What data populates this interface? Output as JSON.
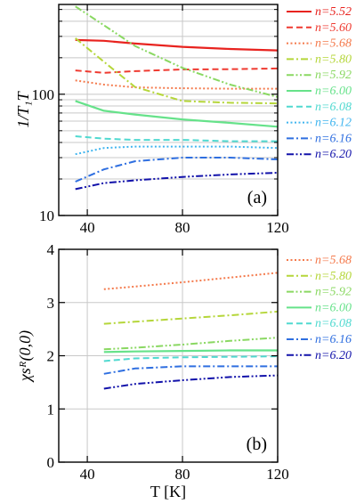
{
  "chart_data": [
    {
      "type": "line",
      "panel_label": "(a)",
      "ylabel": "1/T₁T",
      "xlabel": "",
      "xlim": [
        28,
        120
      ],
      "ylim": [
        10,
        550
      ],
      "yscale": "log",
      "xticks": [
        40,
        80,
        120
      ],
      "xtick_labels": [
        "40",
        "80",
        "120"
      ],
      "yticks": [
        10,
        100
      ],
      "ytick_labels": [
        "10",
        "100"
      ],
      "grid": true,
      "legend_placement": "right-outside",
      "series": [
        {
          "name": "n=5.52",
          "color": "#e8231f",
          "dash": "solid",
          "x": [
            35,
            47,
            60,
            80,
            100,
            120
          ],
          "y": [
            280,
            276,
            262,
            246,
            236,
            230
          ]
        },
        {
          "name": "n=5.60",
          "color": "#ef3a30",
          "dash": "dashed",
          "x": [
            35,
            47,
            60,
            80,
            100,
            120
          ],
          "y": [
            157,
            150,
            155,
            160,
            161,
            163
          ]
        },
        {
          "name": "n=5.68",
          "color": "#f47a4c",
          "dash": "dotted",
          "x": [
            35,
            47,
            60,
            80,
            100,
            120
          ],
          "y": [
            130,
            120,
            114,
            112,
            111,
            111
          ]
        },
        {
          "name": "n=5.80",
          "color": "#b5d63a",
          "dash": "dashdot",
          "x": [
            35,
            47,
            60,
            80,
            100,
            120
          ],
          "y": [
            290,
            185,
            115,
            88,
            85,
            84
          ]
        },
        {
          "name": "n=5.92",
          "color": "#8ad862",
          "dash": "dashdotdot",
          "x": [
            35,
            47,
            60,
            80,
            100,
            120
          ],
          "y": [
            530,
            370,
            250,
            165,
            120,
            95
          ]
        },
        {
          "name": "n=6.00",
          "color": "#66e28a",
          "dash": "solid",
          "x": [
            35,
            47,
            60,
            80,
            100,
            120
          ],
          "y": [
            88,
            73,
            68,
            62,
            58,
            54
          ]
        },
        {
          "name": "n=6.08",
          "color": "#50d9d0",
          "dash": "dashed",
          "x": [
            35,
            47,
            60,
            80,
            100,
            120
          ],
          "y": [
            45,
            43,
            42,
            42,
            41,
            41
          ]
        },
        {
          "name": "n=6.12",
          "color": "#40b5ef",
          "dash": "dotted",
          "x": [
            35,
            47,
            60,
            80,
            100,
            120
          ],
          "y": [
            32,
            36,
            37,
            37,
            37,
            36
          ]
        },
        {
          "name": "n=6.16",
          "color": "#2f6fe0",
          "dash": "dashdot",
          "x": [
            35,
            47,
            60,
            80,
            100,
            120
          ],
          "y": [
            19,
            24,
            28,
            30,
            30,
            29
          ]
        },
        {
          "name": "n=6.20",
          "color": "#1212aa",
          "dash": "dashdotdot",
          "x": [
            35,
            47,
            60,
            80,
            100,
            120
          ],
          "y": [
            16.5,
            18.5,
            19.5,
            20.8,
            21.8,
            22.5
          ]
        }
      ]
    },
    {
      "type": "line",
      "panel_label": "(b)",
      "ylabel": "χsᴿ(0,0)",
      "xlabel": "T [K]",
      "xlim": [
        28,
        120
      ],
      "ylim": [
        0,
        4
      ],
      "xticks": [
        40,
        80,
        120
      ],
      "xtick_labels": [
        "40",
        "80",
        "120"
      ],
      "yticks": [
        0,
        1,
        2,
        3,
        4
      ],
      "ytick_labels": [
        "0",
        "1",
        "2",
        "3",
        "4"
      ],
      "grid": true,
      "legend_placement": "right-outside",
      "series": [
        {
          "name": "n=5.68",
          "color": "#f47a4c",
          "dash": "dotted",
          "x": [
            47,
            60,
            80,
            100,
            120
          ],
          "y": [
            3.25,
            3.3,
            3.38,
            3.47,
            3.56
          ]
        },
        {
          "name": "n=5.80",
          "color": "#b5d63a",
          "dash": "dashdot",
          "x": [
            47,
            60,
            80,
            100,
            120
          ],
          "y": [
            2.6,
            2.64,
            2.7,
            2.76,
            2.83
          ]
        },
        {
          "name": "n=5.92",
          "color": "#8ad862",
          "dash": "dashdotdot",
          "x": [
            47,
            60,
            80,
            100,
            120
          ],
          "y": [
            2.12,
            2.15,
            2.21,
            2.28,
            2.34
          ]
        },
        {
          "name": "n=6.00",
          "color": "#66e28a",
          "dash": "solid",
          "x": [
            47,
            60,
            80,
            100,
            120
          ],
          "y": [
            2.07,
            2.08,
            2.09,
            2.1,
            2.1
          ]
        },
        {
          "name": "n=6.08",
          "color": "#50d9d0",
          "dash": "dashed",
          "x": [
            47,
            60,
            80,
            100,
            120
          ],
          "y": [
            1.9,
            1.95,
            1.97,
            1.98,
            1.99
          ]
        },
        {
          "name": "n=6.16",
          "color": "#2f6fe0",
          "dash": "dashdot",
          "x": [
            47,
            60,
            80,
            100,
            120
          ],
          "y": [
            1.66,
            1.76,
            1.8,
            1.8,
            1.8
          ]
        },
        {
          "name": "n=6.20",
          "color": "#1212aa",
          "dash": "dashdotdot",
          "x": [
            47,
            60,
            80,
            100,
            120
          ],
          "y": [
            1.38,
            1.47,
            1.54,
            1.6,
            1.63
          ]
        }
      ]
    }
  ]
}
